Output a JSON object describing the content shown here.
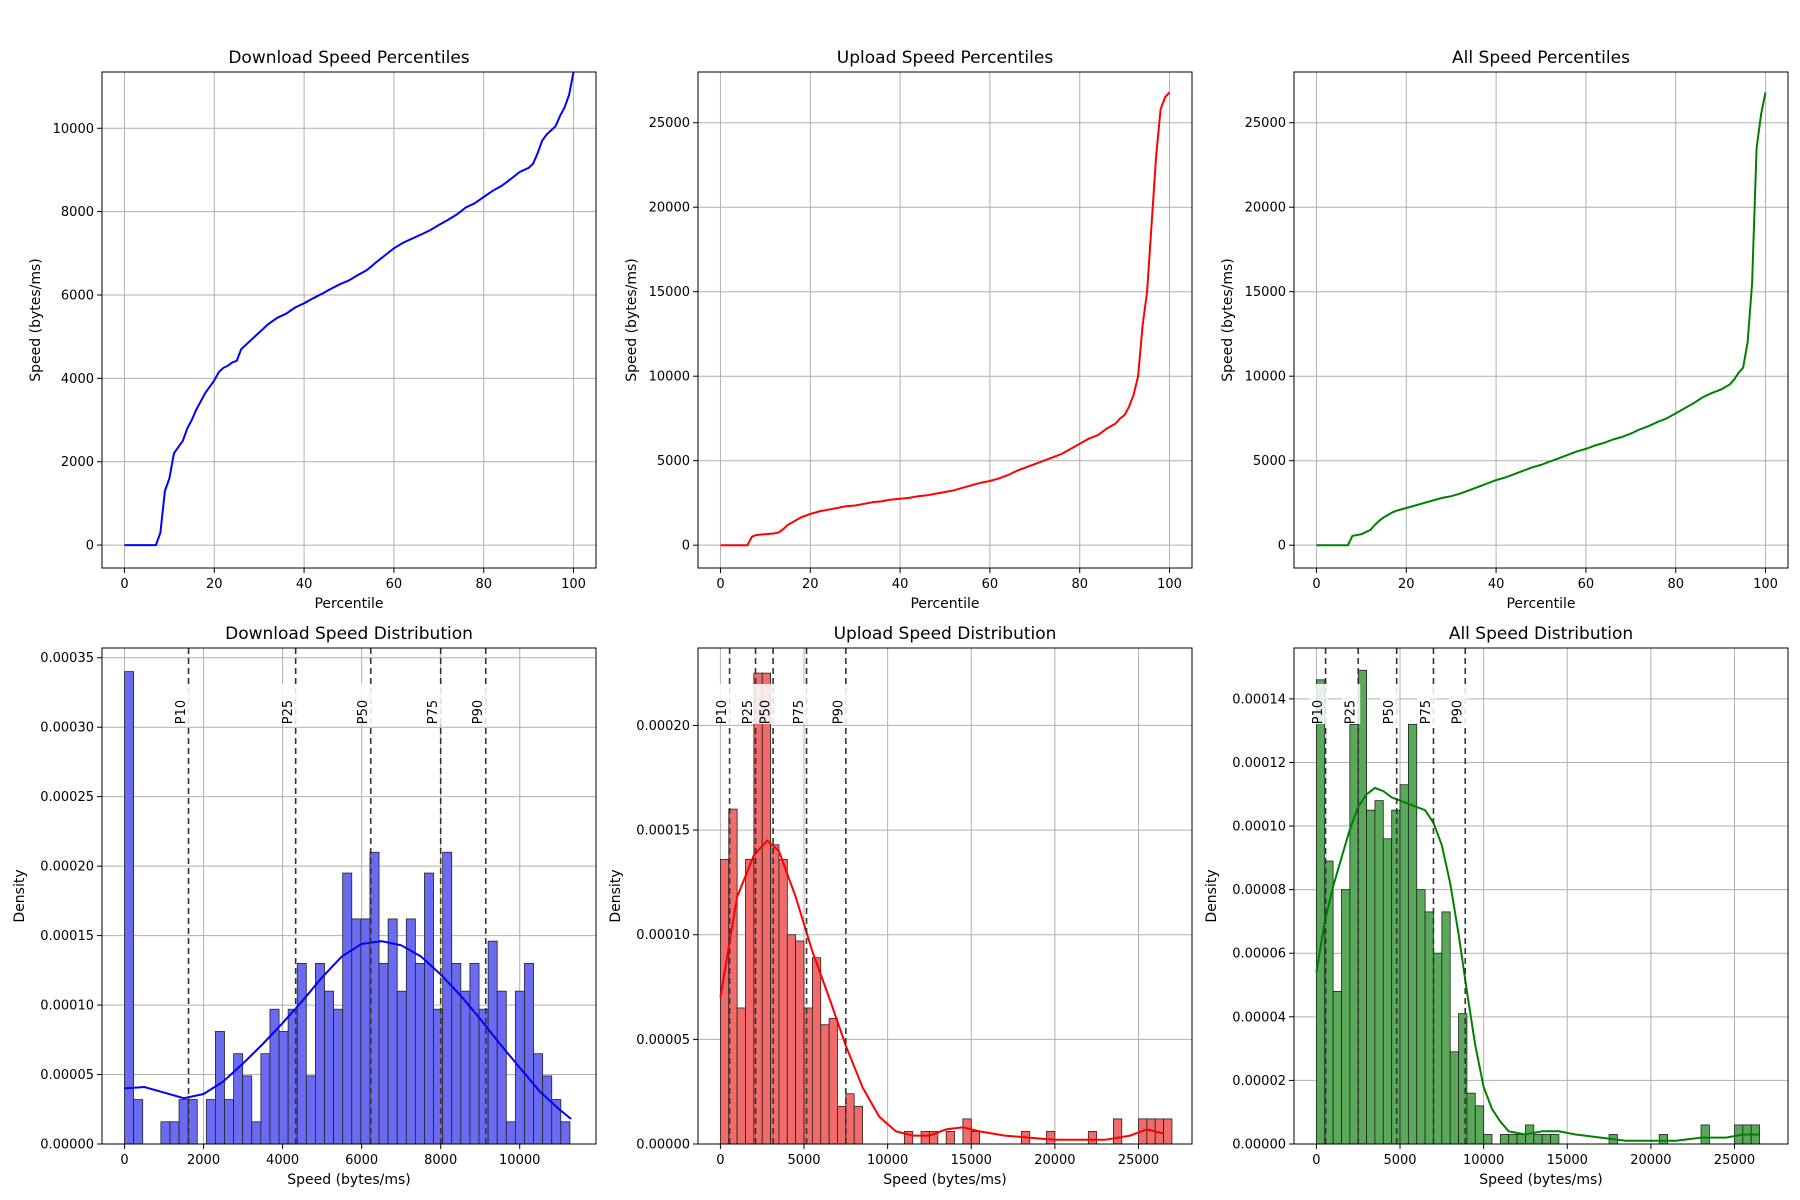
{
  "colors": {
    "download": "#0000ff",
    "upload": "#ff0000",
    "all": "#008000",
    "download_bar": "#6b6bf2",
    "upload_bar": "#f26b6b",
    "all_bar": "#5aa85a",
    "grid": "#b0b0b0",
    "bar_edge": "#222222"
  },
  "chart_data": [
    {
      "type": "line",
      "title": "Download Speed Percentiles",
      "xlabel": "Percentile",
      "ylabel": "Speed (bytes/ms)",
      "xlim": [
        -5,
        105
      ],
      "ylim": [
        -550,
        11350
      ],
      "xticks": [
        0,
        20,
        40,
        60,
        80,
        100
      ],
      "yticks": [
        0,
        2000,
        4000,
        6000,
        8000,
        10000
      ],
      "grid": true,
      "color_key": "download",
      "series": [
        {
          "x": [
            0,
            7,
            8,
            9,
            10,
            11,
            12,
            13,
            14,
            15,
            16,
            17,
            18,
            19,
            20,
            21,
            22,
            23,
            24,
            25,
            26,
            27,
            28,
            30,
            32,
            34,
            36,
            38,
            40,
            42,
            44,
            46,
            48,
            50,
            52,
            54,
            56,
            58,
            60,
            62,
            64,
            66,
            68,
            70,
            72,
            74,
            76,
            78,
            80,
            82,
            84,
            86,
            88,
            90,
            91,
            92,
            93,
            94,
            95,
            96,
            97,
            98,
            99,
            100
          ],
          "y": [
            0,
            0,
            300,
            1300,
            1600,
            2200,
            2350,
            2500,
            2800,
            3000,
            3250,
            3450,
            3650,
            3800,
            3950,
            4150,
            4250,
            4300,
            4380,
            4420,
            4700,
            4800,
            4900,
            5100,
            5300,
            5450,
            5550,
            5700,
            5800,
            5920,
            6030,
            6150,
            6260,
            6350,
            6480,
            6600,
            6780,
            6950,
            7120,
            7250,
            7350,
            7450,
            7550,
            7680,
            7800,
            7930,
            8100,
            8200,
            8350,
            8500,
            8620,
            8780,
            8950,
            9050,
            9150,
            9400,
            9700,
            9850,
            9950,
            10050,
            10300,
            10500,
            10800,
            11350
          ]
        }
      ]
    },
    {
      "type": "line",
      "title": "Upload Speed Percentiles",
      "xlabel": "Percentile",
      "ylabel": "Speed (bytes/ms)",
      "xlim": [
        -5,
        105
      ],
      "ylim": [
        -1350,
        28000
      ],
      "xticks": [
        0,
        20,
        40,
        60,
        80,
        100
      ],
      "yticks": [
        0,
        5000,
        10000,
        15000,
        20000,
        25000
      ],
      "grid": true,
      "color_key": "upload",
      "series": [
        {
          "x": [
            0,
            6,
            7,
            8,
            10,
            12,
            13,
            14,
            15,
            16,
            17,
            18,
            20,
            22,
            24,
            26,
            28,
            30,
            32,
            34,
            36,
            38,
            40,
            42,
            44,
            46,
            48,
            50,
            52,
            54,
            56,
            58,
            60,
            62,
            64,
            66,
            68,
            70,
            72,
            74,
            76,
            78,
            80,
            82,
            84,
            86,
            88,
            89,
            90,
            91,
            92,
            93,
            94,
            95,
            96,
            97,
            98,
            99,
            100
          ],
          "y": [
            0,
            0,
            500,
            600,
            650,
            700,
            750,
            950,
            1200,
            1350,
            1500,
            1650,
            1850,
            2000,
            2100,
            2200,
            2300,
            2350,
            2450,
            2550,
            2600,
            2700,
            2750,
            2800,
            2900,
            2950,
            3050,
            3150,
            3250,
            3400,
            3550,
            3700,
            3800,
            3950,
            4150,
            4400,
            4600,
            4800,
            5000,
            5200,
            5400,
            5700,
            6000,
            6300,
            6500,
            6900,
            7200,
            7500,
            7700,
            8200,
            8900,
            10000,
            13000,
            15000,
            19000,
            23000,
            25800,
            26500,
            26800
          ]
        }
      ]
    },
    {
      "type": "line",
      "title": "All Speed Percentiles",
      "xlabel": "Percentile",
      "ylabel": "Speed (bytes/ms)",
      "xlim": [
        -5,
        105
      ],
      "ylim": [
        -1350,
        28000
      ],
      "xticks": [
        0,
        20,
        40,
        60,
        80,
        100
      ],
      "yticks": [
        0,
        5000,
        10000,
        15000,
        20000,
        25000
      ],
      "grid": true,
      "color_key": "all",
      "series": [
        {
          "x": [
            0,
            7,
            8,
            10,
            12,
            13,
            14,
            15,
            16,
            17,
            18,
            20,
            22,
            24,
            26,
            28,
            30,
            32,
            34,
            36,
            38,
            40,
            42,
            44,
            46,
            48,
            50,
            52,
            54,
            56,
            58,
            60,
            62,
            64,
            66,
            68,
            70,
            72,
            74,
            76,
            78,
            80,
            82,
            84,
            86,
            88,
            90,
            92,
            93,
            94,
            95,
            96,
            97,
            98,
            99,
            100
          ],
          "y": [
            0,
            0,
            550,
            650,
            900,
            1200,
            1450,
            1650,
            1800,
            1950,
            2050,
            2200,
            2350,
            2500,
            2650,
            2800,
            2900,
            3050,
            3250,
            3450,
            3650,
            3850,
            4000,
            4200,
            4400,
            4600,
            4750,
            4950,
            5150,
            5350,
            5550,
            5700,
            5900,
            6050,
            6250,
            6400,
            6600,
            6850,
            7050,
            7300,
            7500,
            7800,
            8100,
            8400,
            8750,
            9000,
            9200,
            9500,
            9800,
            10200,
            10500,
            12000,
            15500,
            23500,
            25500,
            26800
          ]
        }
      ]
    },
    {
      "type": "bar",
      "title": "Download Speed Distribution",
      "xlabel": "Speed (bytes/ms)",
      "ylabel": "Density",
      "xlim": [
        -570,
        11930
      ],
      "ylim": [
        0,
        0.000357
      ],
      "xticks": [
        0,
        2000,
        4000,
        6000,
        8000,
        10000
      ],
      "yticks": [
        0,
        5e-05,
        0.0001,
        0.00015,
        0.0002,
        0.00025,
        0.0003,
        0.00035
      ],
      "ytick_labels": [
        "0.00000",
        "0.00005",
        "0.00010",
        "0.00015",
        "0.00020",
        "0.00025",
        "0.00030",
        "0.00035"
      ],
      "grid": true,
      "color_key": "download",
      "bar_color_key": "download_bar",
      "bin_start": 0,
      "bin_width": 230,
      "values": [
        0.00034,
        3.2e-05,
        0,
        0,
        1.6e-05,
        1.6e-05,
        3.2e-05,
        3.2e-05,
        0,
        3.2e-05,
        8.1e-05,
        3.2e-05,
        6.5e-05,
        4.9e-05,
        1.6e-05,
        6.5e-05,
        9.7e-05,
        8.1e-05,
        9.7e-05,
        0.00013,
        4.9e-05,
        0.00013,
        0.00011,
        9.7e-05,
        0.000195,
        0.000162,
        0.000162,
        0.00021,
        0.00013,
        0.000162,
        0.00011,
        0.000162,
        0.00013,
        0.000195,
        9.7e-05,
        0.00021,
        0.00013,
        0.00011,
        0.00013,
        9.7e-05,
        0.000146,
        0.00011,
        1.6e-05,
        0.00011,
        0.00013,
        6.5e-05,
        4.9e-05,
        3.2e-05,
        1.6e-05
      ],
      "kde": {
        "x": [
          0,
          500,
          1000,
          1500,
          2000,
          2500,
          3000,
          3500,
          4000,
          4500,
          5000,
          5500,
          6000,
          6500,
          7000,
          7500,
          8000,
          8500,
          9000,
          9500,
          10000,
          10500,
          11000,
          11300
        ],
        "y": [
          4e-05,
          4.1e-05,
          3.7e-05,
          3.3e-05,
          3.6e-05,
          4.5e-05,
          5.8e-05,
          7.2e-05,
          8.7e-05,
          0.000103,
          0.00012,
          0.000135,
          0.000144,
          0.000146,
          0.000143,
          0.000135,
          0.000122,
          0.000107,
          9e-05,
          7.2e-05,
          5.5e-05,
          3.8e-05,
          2.5e-05,
          1.8e-05
        ]
      },
      "percentiles": [
        {
          "label": "P10",
          "value": 1620
        },
        {
          "label": "P25",
          "value": 4330
        },
        {
          "label": "P50",
          "value": 6230
        },
        {
          "label": "P75",
          "value": 8000
        },
        {
          "label": "P90",
          "value": 9140
        }
      ]
    },
    {
      "type": "bar",
      "title": "Upload Speed Distribution",
      "xlabel": "Speed (bytes/ms)",
      "ylabel": "Density",
      "xlim": [
        -1340,
        28200
      ],
      "ylim": [
        0,
        0.000237
      ],
      "xticks": [
        0,
        5000,
        10000,
        15000,
        20000,
        25000
      ],
      "yticks": [
        0,
        5e-05,
        0.0001,
        0.00015,
        0.0002
      ],
      "ytick_labels": [
        "0.00000",
        "0.00005",
        "0.00010",
        "0.00015",
        "0.00020"
      ],
      "grid": true,
      "color_key": "upload",
      "bar_color_key": "upload_bar",
      "bin_start": 0,
      "bin_width": 500,
      "values": [
        0.000136,
        0.00016,
        6.5e-05,
        0.000136,
        0.000225,
        0.000225,
        0.000143,
        0.000136,
        0.0001,
        9.7e-05,
        6.5e-05,
        8.9e-05,
        5.7e-05,
        6e-05,
        1.8e-05,
        2.4e-05,
        1.8e-05,
        0,
        0,
        0,
        0,
        0,
        6e-06,
        0,
        6e-06,
        6e-06,
        0,
        6e-06,
        0,
        1.2e-05,
        6e-06,
        0,
        0,
        0,
        0,
        0,
        6e-06,
        0,
        0,
        6e-06,
        0,
        0,
        0,
        0,
        6e-06,
        0,
        0,
        1.2e-05,
        0,
        0,
        1.2e-05,
        1.2e-05,
        1.2e-05,
        1.2e-05
      ],
      "kde": {
        "x": [
          0,
          1000,
          2000,
          2800,
          3500,
          4500,
          5500,
          6500,
          7500,
          8500,
          9500,
          10500,
          11500,
          12500,
          13500,
          14500,
          15500,
          17000,
          18500,
          20000,
          21500,
          23000,
          24500,
          25500,
          26500
        ],
        "y": [
          7e-05,
          0.000118,
          0.000138,
          0.000145,
          0.00014,
          0.000118,
          9.2e-05,
          7e-05,
          4.7e-05,
          2.7e-05,
          1.3e-05,
          6e-06,
          4e-06,
          4e-06,
          7e-06,
          8e-06,
          6e-06,
          4e-06,
          3e-06,
          2e-06,
          2e-06,
          2e-06,
          4e-06,
          7e-06,
          5e-06
        ]
      },
      "percentiles": [
        {
          "label": "P10",
          "value": 550
        },
        {
          "label": "P25",
          "value": 2100
        },
        {
          "label": "P50",
          "value": 3150
        },
        {
          "label": "P75",
          "value": 5150
        },
        {
          "label": "P90",
          "value": 7500
        }
      ]
    },
    {
      "type": "bar",
      "title": "All Speed Distribution",
      "xlabel": "Speed (bytes/ms)",
      "ylabel": "Density",
      "xlim": [
        -1340,
        28200
      ],
      "ylim": [
        0,
        0.000156
      ],
      "xticks": [
        0,
        5000,
        10000,
        15000,
        20000,
        25000
      ],
      "yticks": [
        0,
        2e-05,
        4e-05,
        6e-05,
        8e-05,
        0.0001,
        0.00012,
        0.00014
      ],
      "ytick_labels": [
        "0.00000",
        "0.00002",
        "0.00004",
        "0.00006",
        "0.00008",
        "0.00010",
        "0.00012",
        "0.00014"
      ],
      "grid": true,
      "color_key": "all",
      "bar_color_key": "all_bar",
      "bin_start": 0,
      "bin_width": 500,
      "values": [
        0.000146,
        8.9e-05,
        4.8e-05,
        8e-05,
        0.000132,
        0.000149,
        0.000105,
        0.000108,
        9.6e-05,
        0.000105,
        0.000113,
        0.000132,
        8e-05,
        7.3e-05,
        6e-05,
        7.3e-05,
        2.9e-05,
        4.1e-05,
        1.6e-05,
        1.2e-05,
        3e-06,
        0,
        3e-06,
        3e-06,
        3e-06,
        6e-06,
        3e-06,
        3e-06,
        3e-06,
        0,
        0,
        0,
        0,
        0,
        0,
        3e-06,
        0,
        0,
        0,
        0,
        0,
        3e-06,
        0,
        0,
        0,
        0,
        6e-06,
        0,
        0,
        0,
        6e-06,
        6e-06,
        6e-06
      ],
      "kde": {
        "x": [
          0,
          500,
          1000,
          1500,
          2000,
          2500,
          3000,
          3500,
          4000,
          4500,
          5000,
          5500,
          6000,
          6500,
          7000,
          7500,
          8000,
          8500,
          9000,
          9500,
          10000,
          10500,
          11000,
          11500,
          12500,
          13500,
          14500,
          15500,
          17000,
          18500,
          20000,
          21500,
          23000,
          24500,
          25500,
          26500
        ],
        "y": [
          5.4e-05,
          7e-05,
          8.1e-05,
          9e-05,
          9.9e-05,
          0.000106,
          0.00011,
          0.000112,
          0.000111,
          0.000109,
          0.000108,
          0.000107,
          0.000106,
          0.000105,
          0.000101,
          9.4e-05,
          8.2e-05,
          6.6e-05,
          4.8e-05,
          3.1e-05,
          1.8e-05,
          1.1e-05,
          7e-06,
          4e-06,
          3e-06,
          4e-06,
          4e-06,
          3e-06,
          2e-06,
          1e-06,
          1e-06,
          1e-06,
          2e-06,
          2e-06,
          3e-06,
          3e-06
        ]
      },
      "percentiles": [
        {
          "label": "P10",
          "value": 550
        },
        {
          "label": "P25",
          "value": 2500
        },
        {
          "label": "P50",
          "value": 4800
        },
        {
          "label": "P75",
          "value": 7000
        },
        {
          "label": "P90",
          "value": 8900
        }
      ]
    }
  ]
}
